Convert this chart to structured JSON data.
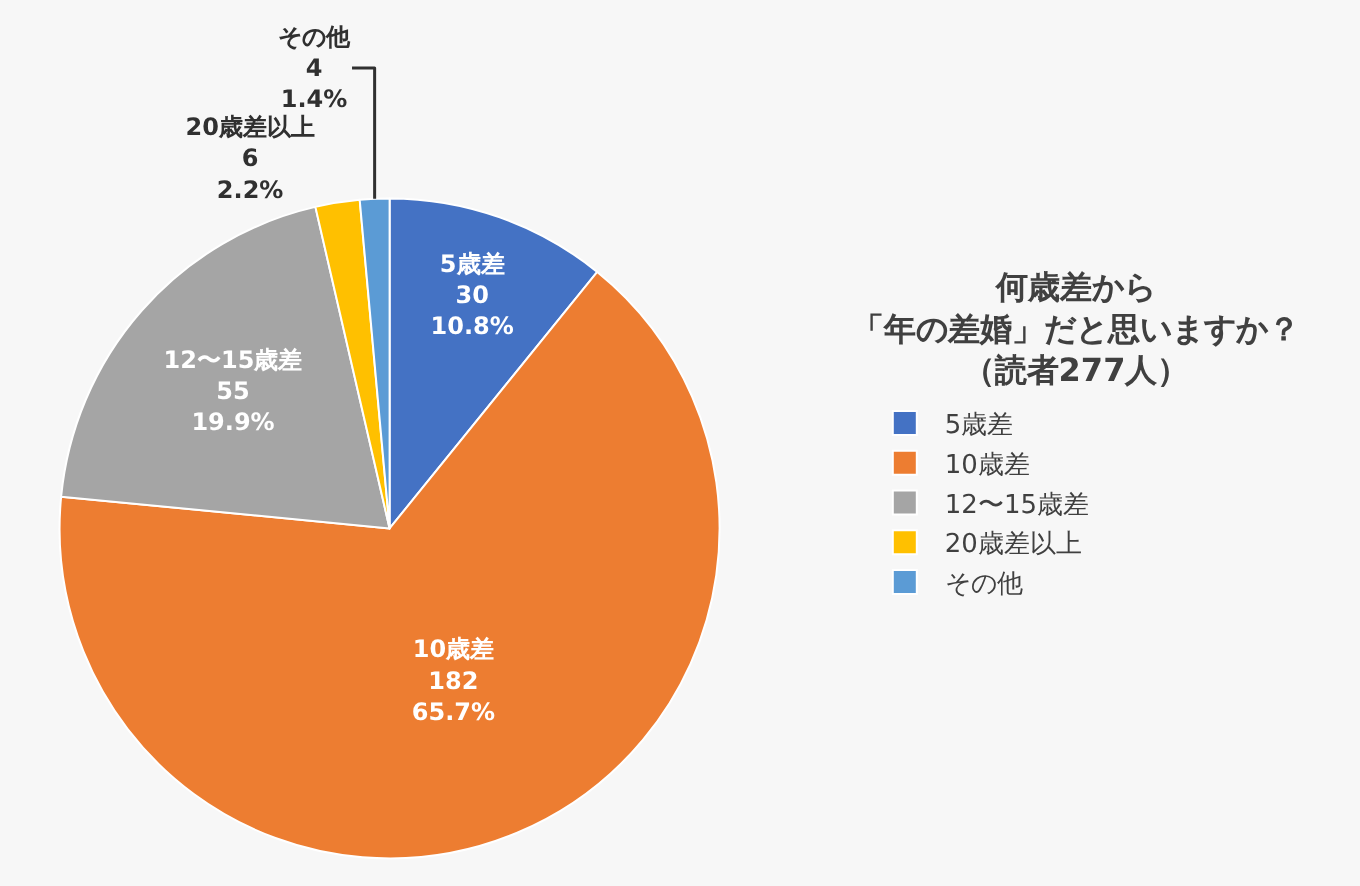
{
  "chart_data": {
    "type": "pie",
    "title": "何歳差から「年の差婚」だと思いますか？",
    "subtitle": "（読者277人）",
    "categories": [
      "5歳差",
      "10歳差",
      "12〜15歳差",
      "20歳差以上",
      "その他"
    ],
    "values": [
      30,
      182,
      55,
      6,
      4
    ],
    "colors": [
      "#4472c4",
      "#ed7d31",
      "#a5a5a5",
      "#ffc000",
      "#5b9bd5"
    ],
    "value_labels": [
      "30\n10.8%",
      "182\n65.7%",
      "55\n19.9%",
      "6\n2.2%",
      "4\n1.4%"
    ],
    "legend": "right"
  }
}
